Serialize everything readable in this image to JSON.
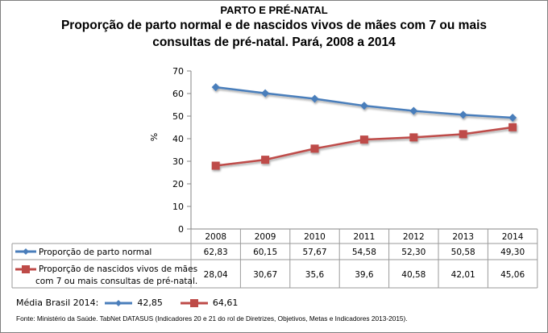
{
  "header": {
    "section": "PARTO E PRÉ-NATAL",
    "title_line1": "Proporção de parto normal e de nascidos vivos de mães com 7 ou mais",
    "title_line2": "consultas de pré-natal. Pará, 2008 a 2014"
  },
  "chart_data": {
    "type": "line",
    "title": "Proporção de parto normal e de nascidos vivos de mães com 7 ou mais consultas de pré-natal. Pará, 2008 a 2014",
    "ylabel": "%",
    "xlabel": "",
    "ylim": [
      0,
      70
    ],
    "yticks": [
      "0",
      "10",
      "20",
      "30",
      "40",
      "50",
      "60",
      "70"
    ],
    "categories": [
      "2008",
      "2009",
      "2010",
      "2011",
      "2012",
      "2013",
      "2014"
    ],
    "series": [
      {
        "name": "Proporção de parto normal",
        "values": [
          62.83,
          60.15,
          57.67,
          54.58,
          52.3,
          50.58,
          49.3
        ],
        "labels": [
          "62,83",
          "60,15",
          "57,67",
          "54,58",
          "52,30",
          "50,58",
          "49,30"
        ],
        "color": "#4a7ebb",
        "marker": "diamond"
      },
      {
        "name_line1": "Proporção de nascidos vivos de mães",
        "name_line2": "com 7 ou mais consultas de pré-natal.",
        "name": "Proporção de nascidos vivos de mães com 7 ou mais consultas de pré-natal.",
        "values": [
          28.04,
          30.67,
          35.6,
          39.6,
          40.58,
          42.01,
          45.06
        ],
        "labels": [
          "28,04",
          "30,67",
          "35,6",
          "39,6",
          "40,58",
          "42,01",
          "45,06"
        ],
        "color": "#be4b48",
        "marker": "square"
      }
    ],
    "legend": "data-table",
    "grid": false
  },
  "media": {
    "label": "Média Brasil 2014:",
    "values": [
      "42,85",
      "64,61"
    ]
  },
  "fonte": "Fonte: Ministério da Saúde. TabNet DATASUS (Indicadores 20 e 21 do rol de Diretrizes, Objetivos, Metas e Indicadores 2013-2015)."
}
